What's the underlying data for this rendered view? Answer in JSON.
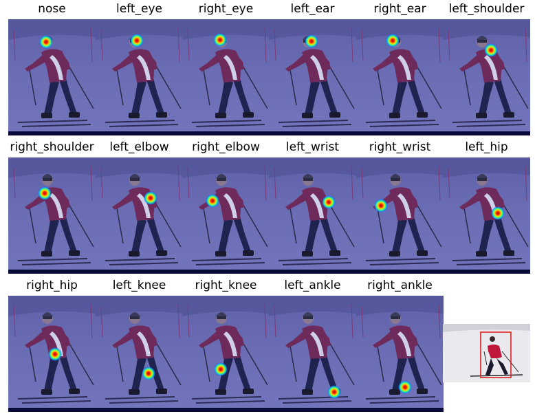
{
  "figure": {
    "panels": [
      {
        "label": "nose"
      },
      {
        "label": "left_eye"
      },
      {
        "label": "right_eye"
      },
      {
        "label": "left_ear"
      },
      {
        "label": "right_ear"
      },
      {
        "label": "left_shoulder"
      },
      {
        "label": "right_shoulder"
      },
      {
        "label": "left_elbow"
      },
      {
        "label": "right_elbow"
      },
      {
        "label": "left_wrist"
      },
      {
        "label": "right_wrist"
      },
      {
        "label": "left_hip"
      },
      {
        "label": "right_hip"
      },
      {
        "label": "left_knee"
      },
      {
        "label": "right_knee"
      },
      {
        "label": "left_ankle"
      },
      {
        "label": "right_ankle"
      }
    ],
    "reference_image": {
      "name": "person-bounding-box-photo"
    }
  }
}
